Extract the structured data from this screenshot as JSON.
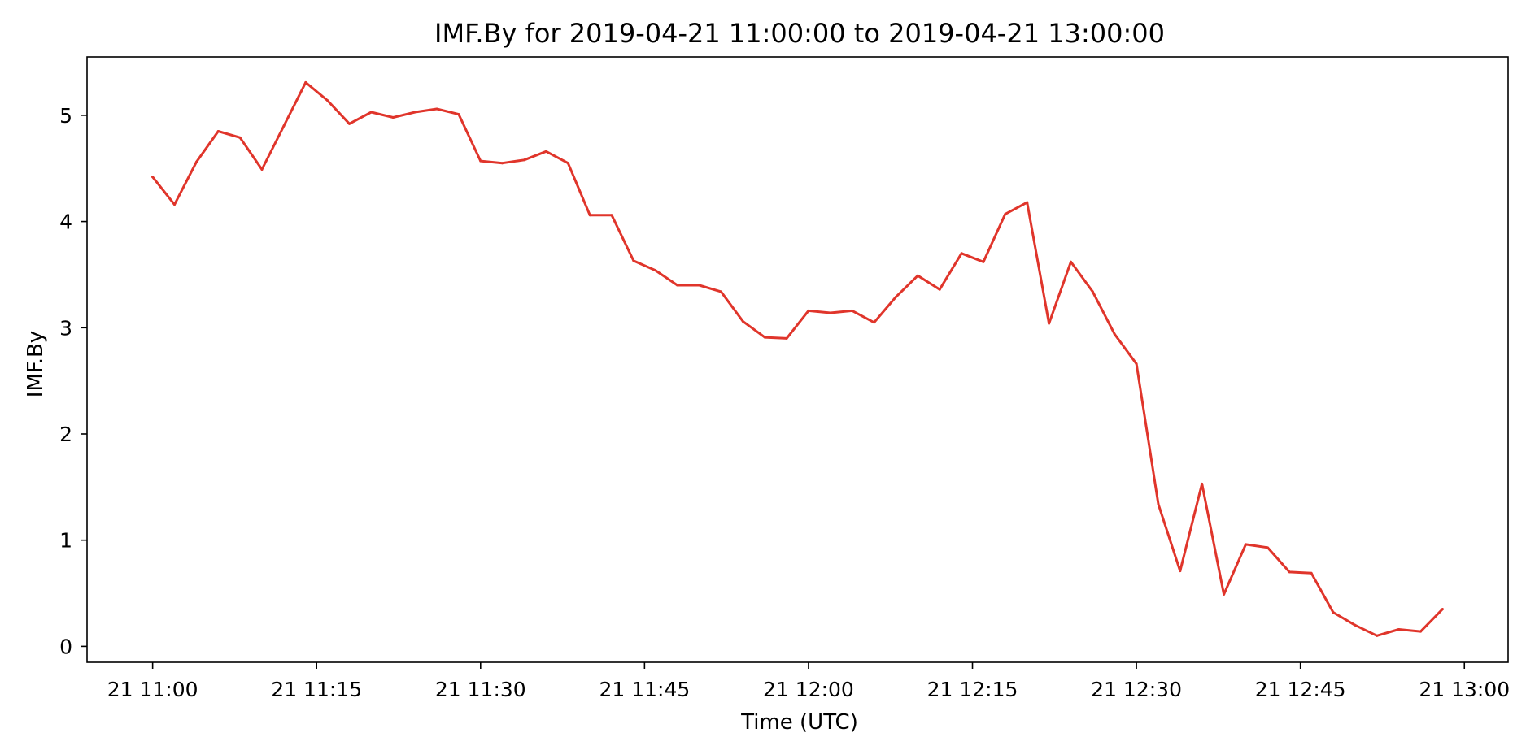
{
  "chart_data": {
    "type": "line",
    "title": "IMF.By for 2019-04-21 11:00:00 to 2019-04-21 13:00:00",
    "xlabel": "Time (UTC)",
    "ylabel": "IMF.By",
    "xlim": [
      "2019-04-21 10:54:00",
      "2019-04-21 13:04:00"
    ],
    "ylim": [
      -0.15,
      5.55
    ],
    "x_ticks": [
      {
        "value": "2019-04-21 11:00:00",
        "label": "21 11:00"
      },
      {
        "value": "2019-04-21 11:15:00",
        "label": "21 11:15"
      },
      {
        "value": "2019-04-21 11:30:00",
        "label": "21 11:30"
      },
      {
        "value": "2019-04-21 11:45:00",
        "label": "21 11:45"
      },
      {
        "value": "2019-04-21 12:00:00",
        "label": "21 12:00"
      },
      {
        "value": "2019-04-21 12:15:00",
        "label": "21 12:15"
      },
      {
        "value": "2019-04-21 12:30:00",
        "label": "21 12:30"
      },
      {
        "value": "2019-04-21 12:45:00",
        "label": "21 12:45"
      },
      {
        "value": "2019-04-21 13:00:00",
        "label": "21 13:00"
      }
    ],
    "y_ticks": [
      {
        "value": 0,
        "label": "0"
      },
      {
        "value": 1,
        "label": "1"
      },
      {
        "value": 2,
        "label": "2"
      },
      {
        "value": 3,
        "label": "3"
      },
      {
        "value": 4,
        "label": "4"
      },
      {
        "value": 5,
        "label": "5"
      }
    ],
    "grid": false,
    "line_color": "#e0352b",
    "series": [
      {
        "x": [
          "2019-04-21 11:00:00",
          "2019-04-21 11:02:00",
          "2019-04-21 11:04:00",
          "2019-04-21 11:06:00",
          "2019-04-21 11:08:00",
          "2019-04-21 11:10:00",
          "2019-04-21 11:12:00",
          "2019-04-21 11:14:00",
          "2019-04-21 11:16:00",
          "2019-04-21 11:18:00",
          "2019-04-21 11:20:00",
          "2019-04-21 11:22:00",
          "2019-04-21 11:24:00",
          "2019-04-21 11:26:00",
          "2019-04-21 11:28:00",
          "2019-04-21 11:30:00",
          "2019-04-21 11:32:00",
          "2019-04-21 11:34:00",
          "2019-04-21 11:36:00",
          "2019-04-21 11:38:00",
          "2019-04-21 11:40:00",
          "2019-04-21 11:42:00",
          "2019-04-21 11:44:00",
          "2019-04-21 11:46:00",
          "2019-04-21 11:48:00",
          "2019-04-21 11:50:00",
          "2019-04-21 11:52:00",
          "2019-04-21 11:54:00",
          "2019-04-21 11:56:00",
          "2019-04-21 11:58:00",
          "2019-04-21 12:00:00",
          "2019-04-21 12:02:00",
          "2019-04-21 12:04:00",
          "2019-04-21 12:06:00",
          "2019-04-21 12:08:00",
          "2019-04-21 12:10:00",
          "2019-04-21 12:12:00",
          "2019-04-21 12:14:00",
          "2019-04-21 12:16:00",
          "2019-04-21 12:18:00",
          "2019-04-21 12:20:00",
          "2019-04-21 12:22:00",
          "2019-04-21 12:24:00",
          "2019-04-21 12:26:00",
          "2019-04-21 12:28:00",
          "2019-04-21 12:30:00",
          "2019-04-21 12:32:00",
          "2019-04-21 12:34:00",
          "2019-04-21 12:36:00",
          "2019-04-21 12:38:00",
          "2019-04-21 12:40:00",
          "2019-04-21 12:42:00",
          "2019-04-21 12:44:00",
          "2019-04-21 12:46:00",
          "2019-04-21 12:48:00",
          "2019-04-21 12:50:00",
          "2019-04-21 12:52:00",
          "2019-04-21 12:54:00",
          "2019-04-21 12:56:00",
          "2019-04-21 12:58:00"
        ],
        "values": [
          4.42,
          4.16,
          4.56,
          4.85,
          4.79,
          4.49,
          4.9,
          5.31,
          5.14,
          4.92,
          5.03,
          4.98,
          5.03,
          5.06,
          5.01,
          4.57,
          4.55,
          4.58,
          4.66,
          4.55,
          4.06,
          4.06,
          3.63,
          3.54,
          3.4,
          3.4,
          3.34,
          3.06,
          2.91,
          2.9,
          3.16,
          3.14,
          3.16,
          3.05,
          3.29,
          3.49,
          3.36,
          3.7,
          3.62,
          4.07,
          4.18,
          3.04,
          3.62,
          3.34,
          2.94,
          2.66,
          1.34,
          0.71,
          1.53,
          0.49,
          0.96,
          0.93,
          0.7,
          0.69,
          0.32,
          0.2,
          0.1,
          0.16,
          0.14,
          0.35
        ]
      }
    ]
  }
}
